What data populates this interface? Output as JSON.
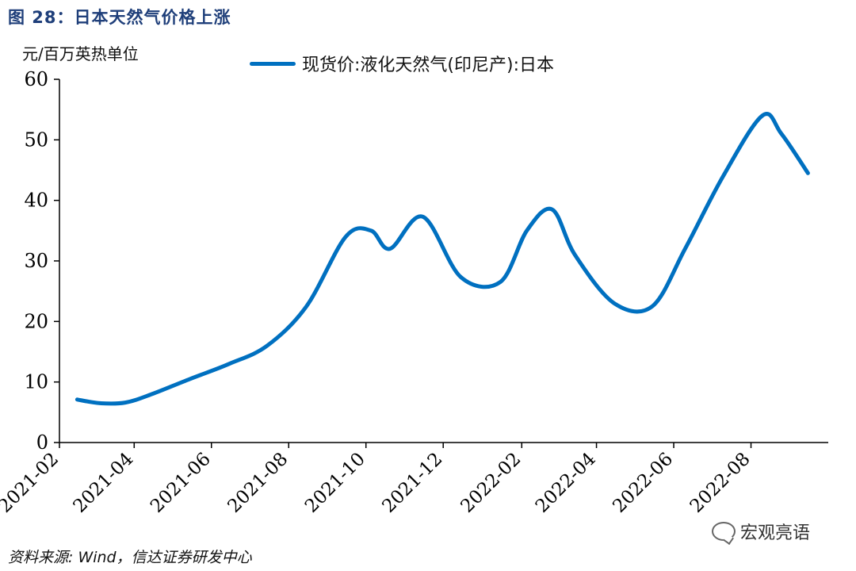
{
  "figure": {
    "title": "图 28：日本天然气价格上涨",
    "source": "资料来源: Wind，信达证券研发中心",
    "watermark": "宏观亮语"
  },
  "chart_data": {
    "type": "line",
    "unit_label": "元/百万英热单位",
    "ylim": [
      0,
      60
    ],
    "y_ticks": [
      0,
      10,
      20,
      30,
      40,
      50,
      60
    ],
    "x_ticks": [
      "2021-02",
      "2021-04",
      "2021-06",
      "2021-08",
      "2021-10",
      "2021-12",
      "2022-02",
      "2022-04",
      "2022-06",
      "2022-08"
    ],
    "x_range": [
      "2021-02",
      "2022-10"
    ],
    "legend_position": "top-center",
    "grid": false,
    "series": [
      {
        "name": "现货价:液化天然气(印尼产):日本",
        "color": "#0070c0",
        "x": [
          "2021-02-15",
          "2021-03-05",
          "2021-03-25",
          "2021-04-15",
          "2021-05-15",
          "2021-06-15",
          "2021-07-15",
          "2021-08-15",
          "2021-09-15",
          "2021-10-05",
          "2021-10-20",
          "2021-11-15",
          "2021-12-15",
          "2022-01-15",
          "2022-02-05",
          "2022-02-25",
          "2022-03-15",
          "2022-04-15",
          "2022-05-15",
          "2022-06-10",
          "2022-07-10",
          "2022-08-10",
          "2022-08-25",
          "2022-09-15"
        ],
        "values": [
          7.1,
          6.5,
          6.6,
          8.0,
          10.5,
          13.0,
          16.0,
          22.5,
          34.0,
          35.0,
          32.0,
          37.3,
          27.3,
          26.5,
          35.0,
          38.5,
          31.0,
          23.0,
          22.5,
          32.0,
          44.0,
          54.0,
          51.0,
          44.5
        ]
      }
    ]
  }
}
